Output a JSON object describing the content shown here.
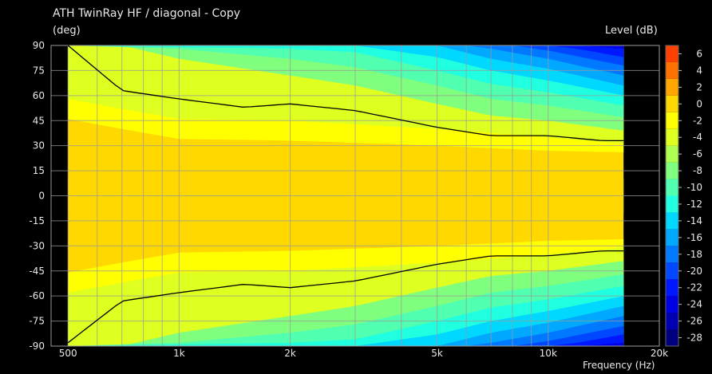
{
  "header": {
    "title": "ATH TwinRay HF / diagonal - Copy",
    "y_unit": "(deg)",
    "colorbar_label": "Level  (dB)",
    "x_axis_label": "Frequency  (Hz)"
  },
  "chart_data": {
    "type": "heatmap",
    "title": "ATH TwinRay HF / diagonal - Copy",
    "xlabel": "Frequency  (Hz)",
    "ylabel": "(deg)",
    "x_scale": "log",
    "xlim": [
      450,
      20000
    ],
    "ylim": [
      -90,
      90
    ],
    "data_x_range": [
      500,
      16000
    ],
    "x_ticks": [
      500,
      1000,
      2000,
      5000,
      10000,
      20000
    ],
    "x_tick_labels": [
      "500",
      "1k",
      "2k",
      "5k",
      "10k",
      "20k"
    ],
    "y_ticks": [
      90,
      75,
      60,
      45,
      30,
      15,
      0,
      -15,
      -30,
      -45,
      -60,
      -75,
      -90
    ],
    "y_tick_labels": [
      "90",
      "75",
      "60",
      "45",
      "30",
      "15",
      "0",
      "-15",
      "-30",
      "-45",
      "-60",
      "-75",
      "-90"
    ],
    "grid": true,
    "symmetric_about_zero": true,
    "colorbar": {
      "label": "Level  (dB)",
      "min": -29,
      "max": 7,
      "step": 2,
      "tick_values": [
        6,
        4,
        2,
        0,
        -2,
        -4,
        -6,
        -8,
        -10,
        -12,
        -14,
        -16,
        -18,
        -20,
        -22,
        -24,
        -26,
        -28
      ],
      "tick_labels": [
        "6",
        "4",
        "2",
        "0",
        "-2",
        "-4",
        "-6",
        "-8",
        "-10",
        "-12",
        "-14",
        "-16",
        "-18",
        "-20",
        "-22",
        "-24",
        "-26",
        "-28"
      ],
      "band_colors": [
        "#00007e",
        "#0000b3",
        "#0000e5",
        "#0018ff",
        "#0048ff",
        "#0078ff",
        "#00a8ff",
        "#00d8ff",
        "#20ffdf",
        "#50ffaf",
        "#80ff7f",
        "#afff50",
        "#dfff20",
        "#ffff00",
        "#ffd800",
        "#ffa600",
        "#ff7200",
        "#ff4000",
        "#ff0800",
        "#e50000",
        "#c00000",
        "#9a0000"
      ]
    },
    "contour_lines": [
      {
        "level_db": -6,
        "points": [
          [
            500,
            90
          ],
          [
            700,
            63
          ],
          [
            1000,
            58
          ],
          [
            1500,
            53
          ],
          [
            2000,
            55
          ],
          [
            3000,
            51
          ],
          [
            5000,
            41
          ],
          [
            7000,
            36
          ],
          [
            10000,
            36
          ],
          [
            14000,
            33
          ],
          [
            16000,
            33
          ]
        ]
      },
      {
        "level_db": -6,
        "points": [
          [
            500,
            -88
          ],
          [
            700,
            -63
          ],
          [
            1000,
            -58
          ],
          [
            1500,
            -53
          ],
          [
            2000,
            -55
          ],
          [
            3000,
            -51
          ],
          [
            5000,
            -41
          ],
          [
            7000,
            -36
          ],
          [
            10000,
            -36
          ],
          [
            14000,
            -33
          ],
          [
            16000,
            -33
          ]
        ]
      }
    ],
    "level_contours": [
      {
        "level_db": -2,
        "angles": [
          [
            500,
            46
          ],
          [
            700,
            40
          ],
          [
            1000,
            34
          ],
          [
            2000,
            33
          ],
          [
            5000,
            30
          ],
          [
            10000,
            27
          ],
          [
            16000,
            26
          ]
        ]
      },
      {
        "level_db": -4,
        "angles": [
          [
            500,
            58
          ],
          [
            700,
            52
          ],
          [
            1000,
            46
          ],
          [
            2000,
            45
          ],
          [
            5000,
            40
          ],
          [
            10000,
            35
          ],
          [
            16000,
            31
          ]
        ]
      },
      {
        "level_db": -8,
        "angles": [
          [
            500,
            90
          ],
          [
            700,
            90
          ],
          [
            1000,
            82
          ],
          [
            2000,
            72
          ],
          [
            3000,
            66
          ],
          [
            5000,
            55
          ],
          [
            7000,
            48
          ],
          [
            10000,
            45
          ],
          [
            16000,
            39
          ]
        ]
      },
      {
        "level_db": -10,
        "angles": [
          [
            500,
            90
          ],
          [
            1000,
            88
          ],
          [
            2000,
            82
          ],
          [
            3000,
            77
          ],
          [
            5000,
            66
          ],
          [
            7000,
            58
          ],
          [
            10000,
            54
          ],
          [
            16000,
            47
          ]
        ]
      },
      {
        "level_db": -12,
        "angles": [
          [
            500,
            90
          ],
          [
            2000,
            88
          ],
          [
            3000,
            86
          ],
          [
            5000,
            75
          ],
          [
            7000,
            67
          ],
          [
            10000,
            62
          ],
          [
            16000,
            54
          ]
        ]
      },
      {
        "level_db": -14,
        "angles": [
          [
            500,
            90
          ],
          [
            3000,
            90
          ],
          [
            5000,
            83
          ],
          [
            7000,
            75
          ],
          [
            10000,
            69
          ],
          [
            16000,
            60
          ]
        ]
      },
      {
        "level_db": -16,
        "angles": [
          [
            500,
            90
          ],
          [
            5000,
            90
          ],
          [
            7000,
            82
          ],
          [
            10000,
            76
          ],
          [
            16000,
            66
          ]
        ]
      },
      {
        "level_db": -18,
        "angles": [
          [
            500,
            90
          ],
          [
            6000,
            90
          ],
          [
            7000,
            88
          ],
          [
            10000,
            82
          ],
          [
            16000,
            72
          ]
        ]
      },
      {
        "level_db": -20,
        "angles": [
          [
            500,
            90
          ],
          [
            8000,
            90
          ],
          [
            10000,
            87
          ],
          [
            16000,
            78
          ]
        ]
      },
      {
        "level_db": -22,
        "angles": [
          [
            500,
            90
          ],
          [
            10000,
            90
          ],
          [
            12000,
            88
          ],
          [
            16000,
            83
          ]
        ]
      },
      {
        "level_db": -24,
        "angles": [
          [
            500,
            90
          ],
          [
            12000,
            90
          ],
          [
            16000,
            88
          ]
        ]
      }
    ]
  }
}
